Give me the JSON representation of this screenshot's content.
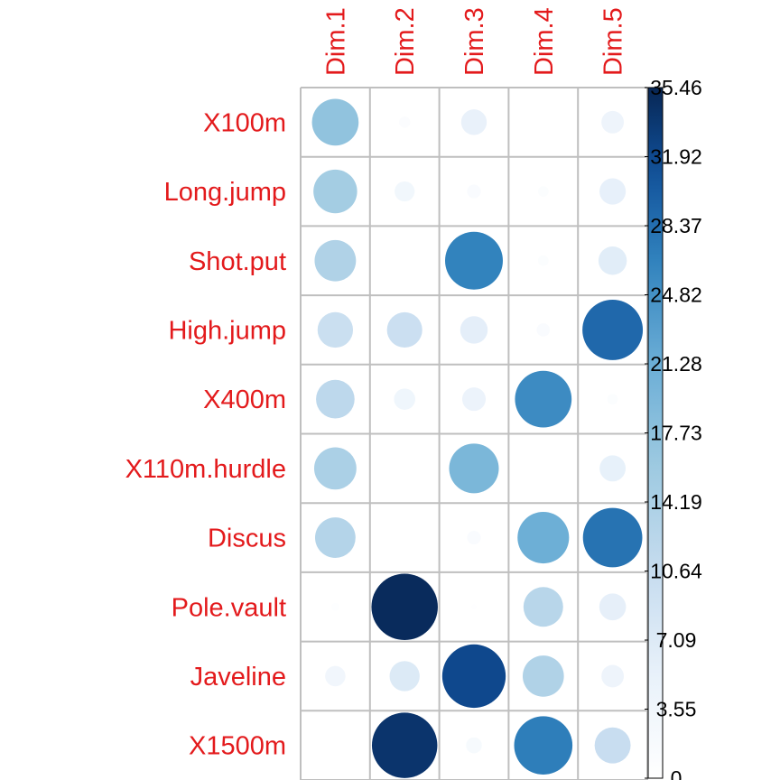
{
  "chart_data": {
    "type": "heatmap",
    "glyph": "circle",
    "rows": [
      "X100m",
      "Long.jump",
      "Shot.put",
      "High.jump",
      "X400m",
      "X110m.hurdle",
      "Discus",
      "Pole.vault",
      "Javeline",
      "X1500m"
    ],
    "columns": [
      "Dim.1",
      "Dim.2",
      "Dim.3",
      "Dim.4",
      "Dim.5"
    ],
    "values": [
      [
        17.3,
        1.0,
        5.2,
        0.0,
        4.0
      ],
      [
        15.2,
        3.2,
        1.5,
        0.9,
        5.5
      ],
      [
        13.6,
        0.1,
        26.5,
        0.9,
        6.4
      ],
      [
        10.0,
        9.9,
        6.0,
        1.4,
        29.0
      ],
      [
        11.8,
        3.6,
        4.4,
        25.5,
        0.9
      ],
      [
        14.2,
        0.0,
        19.6,
        0.0,
        5.4
      ],
      [
        13.0,
        0.0,
        1.5,
        21.1,
        28.0
      ],
      [
        0.5,
        35.0,
        0.2,
        12.5,
        5.7
      ],
      [
        3.3,
        7.2,
        32.0,
        13.5,
        4.0
      ],
      [
        0.0,
        34.0,
        2.0,
        27.0,
        10.3
      ]
    ],
    "colorbar": {
      "min": 0,
      "max": 35.46,
      "tick_labels": [
        "0",
        "3.55",
        "7.09",
        "10.64",
        "14.19",
        "17.73",
        "21.28",
        "24.82",
        "28.37",
        "31.92",
        "35.46"
      ]
    },
    "colors": {
      "label": "#e31a1c",
      "grid": "#bfbfbf",
      "scale_low": "#ffffff",
      "scale_high": "#08306b"
    }
  }
}
